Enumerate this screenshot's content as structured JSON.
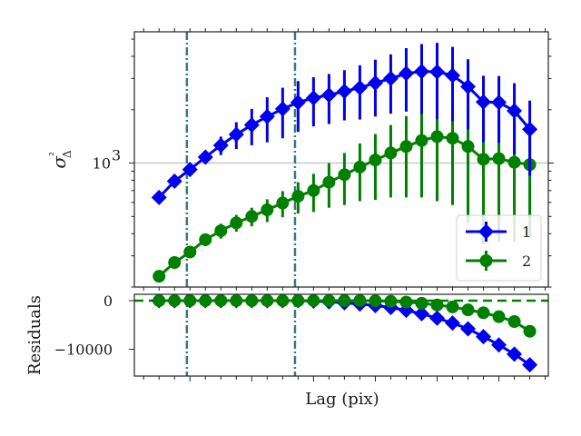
{
  "chart_data": [
    {
      "type": "line",
      "panel": "top",
      "xlabel": "",
      "ylabel": "σ²Δ",
      "yscale": "log",
      "ylim": [
        200,
        5500
      ],
      "yticks": [
        {
          "value": 1000,
          "label": "10",
          "exp": "3"
        }
      ],
      "x": [
        1.5,
        1.75,
        2,
        2.25,
        2.5,
        2.75,
        3,
        3.25,
        3.5,
        3.75,
        4,
        4.25,
        4.5,
        4.75,
        5,
        5.25,
        5.5,
        5.75,
        6,
        6.25,
        6.5,
        6.75,
        7,
        7.25,
        7.5
      ],
      "xlim": [
        1.1,
        7.8
      ],
      "reference_hline": 1000,
      "vlines": [
        1.95,
        3.7
      ],
      "series": [
        {
          "name": "1",
          "marker": "diamond",
          "color": "#0000ee",
          "values": [
            640,
            790,
            920,
            1080,
            1260,
            1450,
            1640,
            1830,
            2020,
            2200,
            2330,
            2420,
            2540,
            2660,
            2830,
            3000,
            3200,
            3290,
            3270,
            3120,
            2700,
            2210,
            2200,
            1970,
            1550
          ],
          "errors": [
            0,
            0,
            0,
            90,
            150,
            250,
            380,
            520,
            640,
            700,
            720,
            760,
            800,
            900,
            1000,
            1100,
            1250,
            1400,
            1500,
            1400,
            1150,
            900,
            900,
            850,
            700
          ]
        },
        {
          "name": "2",
          "marker": "circle",
          "color": "#008000",
          "values": [
            230,
            275,
            315,
            370,
            415,
            460,
            500,
            545,
            595,
            650,
            700,
            780,
            860,
            950,
            1040,
            1140,
            1240,
            1340,
            1410,
            1380,
            1240,
            1050,
            1060,
            1010,
            980
          ],
          "errors": [
            0,
            0,
            18,
            30,
            40,
            50,
            60,
            80,
            100,
            130,
            170,
            220,
            280,
            340,
            420,
            500,
            600,
            700,
            800,
            800,
            780,
            700,
            700,
            650,
            600
          ]
        }
      ],
      "legend": {
        "placement": "lower-right",
        "entries": [
          "1",
          "2"
        ]
      }
    },
    {
      "type": "line",
      "panel": "bottom",
      "xlabel": "Lag (pix)",
      "ylabel": "Residuals",
      "ylim": [
        -15500,
        1300
      ],
      "yticks": [
        {
          "value": 0,
          "label": "0"
        },
        {
          "value": -10000,
          "label": "−10000"
        }
      ],
      "x": [
        1.5,
        1.75,
        2,
        2.25,
        2.5,
        2.75,
        3,
        3.25,
        3.5,
        3.75,
        4,
        4.25,
        4.5,
        4.75,
        5,
        5.25,
        5.5,
        5.75,
        6,
        6.25,
        6.5,
        6.75,
        7,
        7.25,
        7.5
      ],
      "xlim": [
        1.1,
        7.8
      ],
      "vlines": [
        1.95,
        3.7
      ],
      "zero_line": {
        "value": 0,
        "style": "dashed",
        "color": "#008000"
      },
      "series": [
        {
          "name": "1",
          "marker": "diamond",
          "color": "#0000ee",
          "values": [
            0,
            0,
            0,
            0,
            0,
            0,
            0,
            0,
            0,
            0,
            -100,
            -250,
            -450,
            -700,
            -1000,
            -1400,
            -2000,
            -2700,
            -3600,
            -4600,
            -5800,
            -7400,
            -9100,
            -11000,
            -13200
          ]
        },
        {
          "name": "2",
          "marker": "circle",
          "color": "#008000",
          "values": [
            0,
            0,
            0,
            0,
            0,
            0,
            0,
            0,
            0,
            0,
            0,
            0,
            0,
            0,
            -50,
            -150,
            -300,
            -550,
            -900,
            -1300,
            -1900,
            -2500,
            -3300,
            -4300,
            -6300
          ]
        }
      ]
    }
  ]
}
